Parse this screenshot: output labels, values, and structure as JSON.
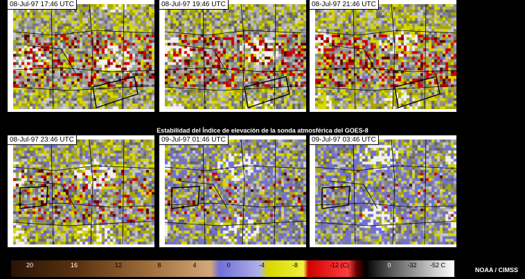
{
  "panels": [
    {
      "timestamp": "08-Jul-97 17:46 UTC"
    },
    {
      "timestamp": "08-Jul-97 19:46 UTC"
    },
    {
      "timestamp": "08-Jul-97 21:46 UTC"
    },
    {
      "timestamp": "08-Jul-97 23:46 UTC"
    },
    {
      "timestamp": "09-Jul-97 01:46 UTC"
    },
    {
      "timestamp": "09-Jul-97 03:46 UTC"
    }
  ],
  "caption": "Estabilidad del Índice de elevación de la sonda atmosférica del GOES-8",
  "scale": {
    "labels": [
      "20",
      "16",
      "12",
      "8",
      "4",
      "0",
      "-4",
      "-8",
      "-12 (C)",
      "0",
      "-32",
      "-52 C"
    ],
    "colors": {
      "brown_dark": "#3a1e08",
      "brown_light": "#d4a878",
      "blue": "#7070d8",
      "yellow": "#d8d800",
      "red": "#d00000",
      "dark_red": "#600000",
      "cloud_white": "#f0f0f0"
    }
  },
  "credit": "NOAA / CIMSS"
}
